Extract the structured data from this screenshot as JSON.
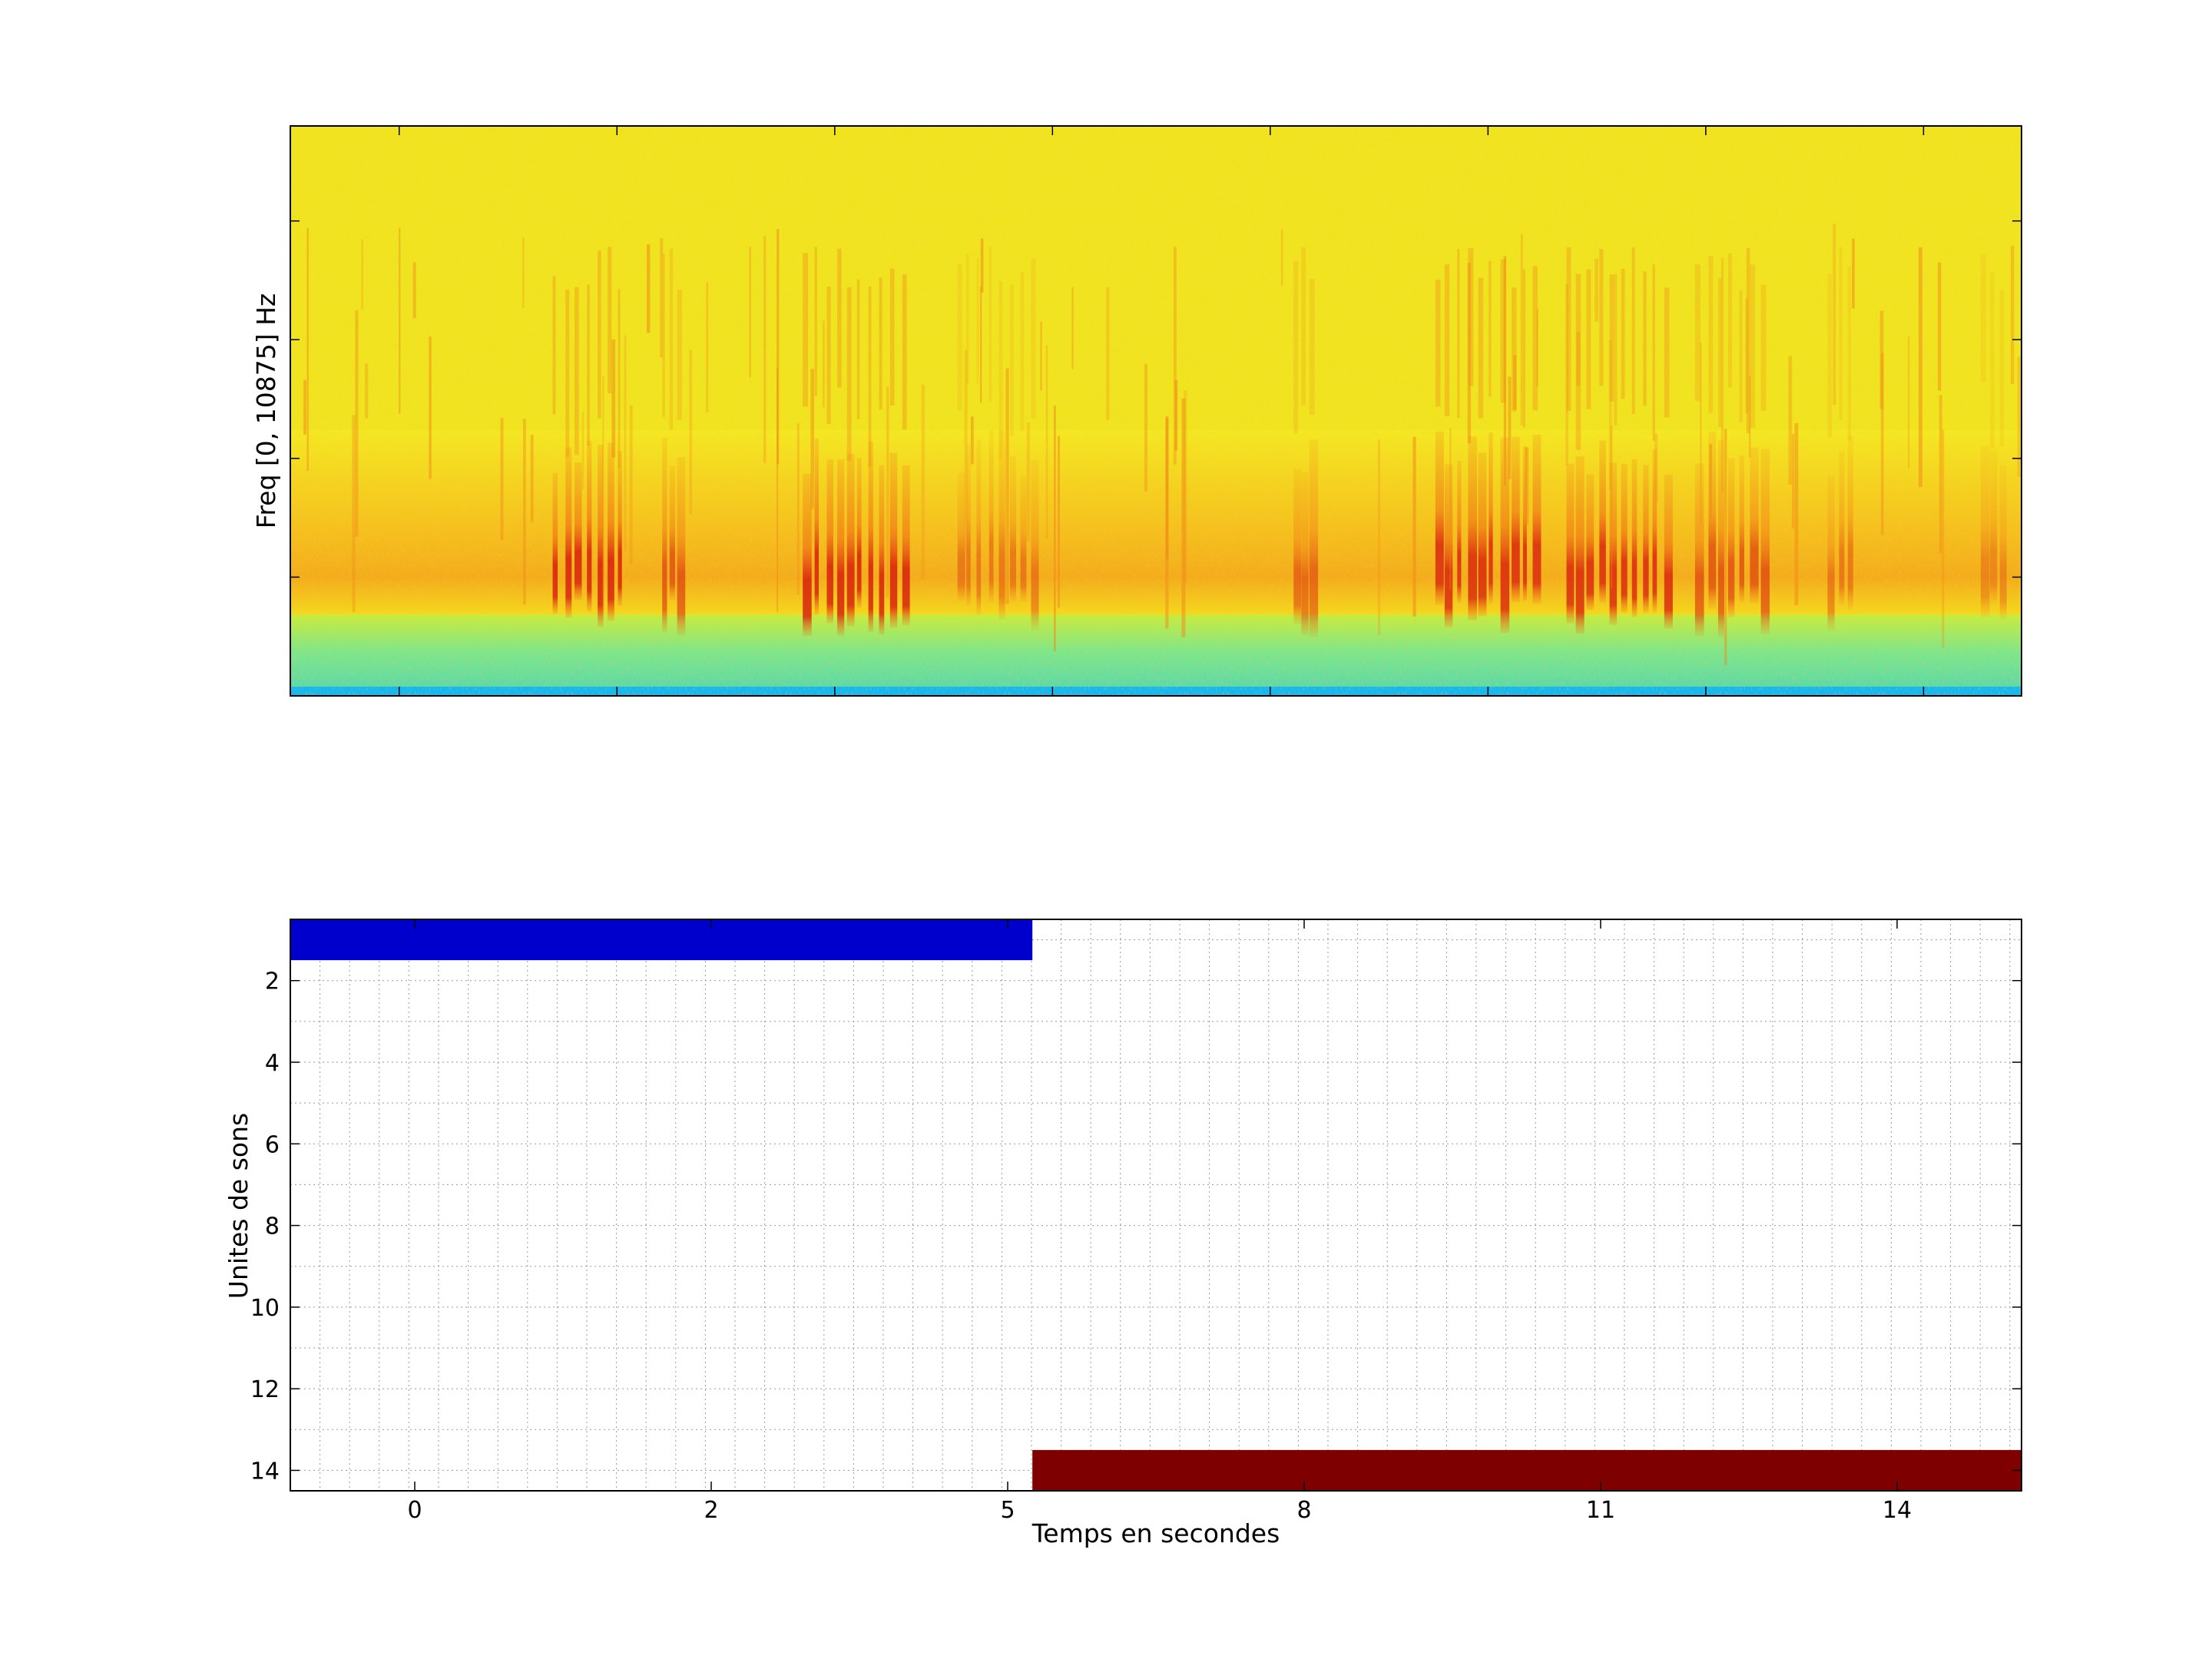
{
  "chart_data": [
    {
      "type": "heatmap",
      "name": "spectrogram",
      "ylabel": "Freq [0, 10875] Hz",
      "xlabel": "",
      "x_range": [
        -1.0,
        14.9
      ],
      "y_range": [
        0,
        10875
      ],
      "colormap": "jet",
      "background_color": "#f0e41e",
      "low_band_color": "#6ee58c",
      "floor_color": "#15b8ee",
      "description_series": {
        "name": "energy-bursts",
        "bursts": [
          {
            "t_start": 1.4,
            "t_end": 2.1,
            "intensity": 0.9
          },
          {
            "t_start": 2.4,
            "t_end": 2.6,
            "intensity": 0.6
          },
          {
            "t_start": 3.7,
            "t_end": 4.7,
            "intensity": 0.9
          },
          {
            "t_start": 5.1,
            "t_end": 5.9,
            "intensity": 0.4
          },
          {
            "t_start": 8.2,
            "t_end": 8.4,
            "intensity": 0.5
          },
          {
            "t_start": 9.5,
            "t_end": 10.5,
            "intensity": 0.85
          },
          {
            "t_start": 10.7,
            "t_end": 11.7,
            "intensity": 0.85
          },
          {
            "t_start": 11.9,
            "t_end": 12.6,
            "intensity": 0.6
          },
          {
            "t_start": 13.1,
            "t_end": 13.4,
            "intensity": 0.4
          },
          {
            "t_start": 14.5,
            "t_end": 14.8,
            "intensity": 0.3
          }
        ]
      }
    },
    {
      "type": "bar",
      "name": "sound-units",
      "xlabel": "Temps en secondes",
      "ylabel": "Unites de sons",
      "x_tick_labels": [
        "0",
        "2",
        "5",
        "8",
        "11",
        "14"
      ],
      "y_tick_labels": [
        "2",
        "4",
        "6",
        "8",
        "10",
        "12",
        "14"
      ],
      "y_range": [
        0.5,
        14.5
      ],
      "y_reversed": true,
      "grid": true,
      "bars": [
        {
          "unit": 1,
          "t_start": -1.0,
          "t_end": 5.25,
          "color": "#0000cc"
        },
        {
          "unit": 14,
          "t_start": 5.25,
          "t_end": 14.9,
          "color": "#7f0000"
        }
      ]
    }
  ]
}
